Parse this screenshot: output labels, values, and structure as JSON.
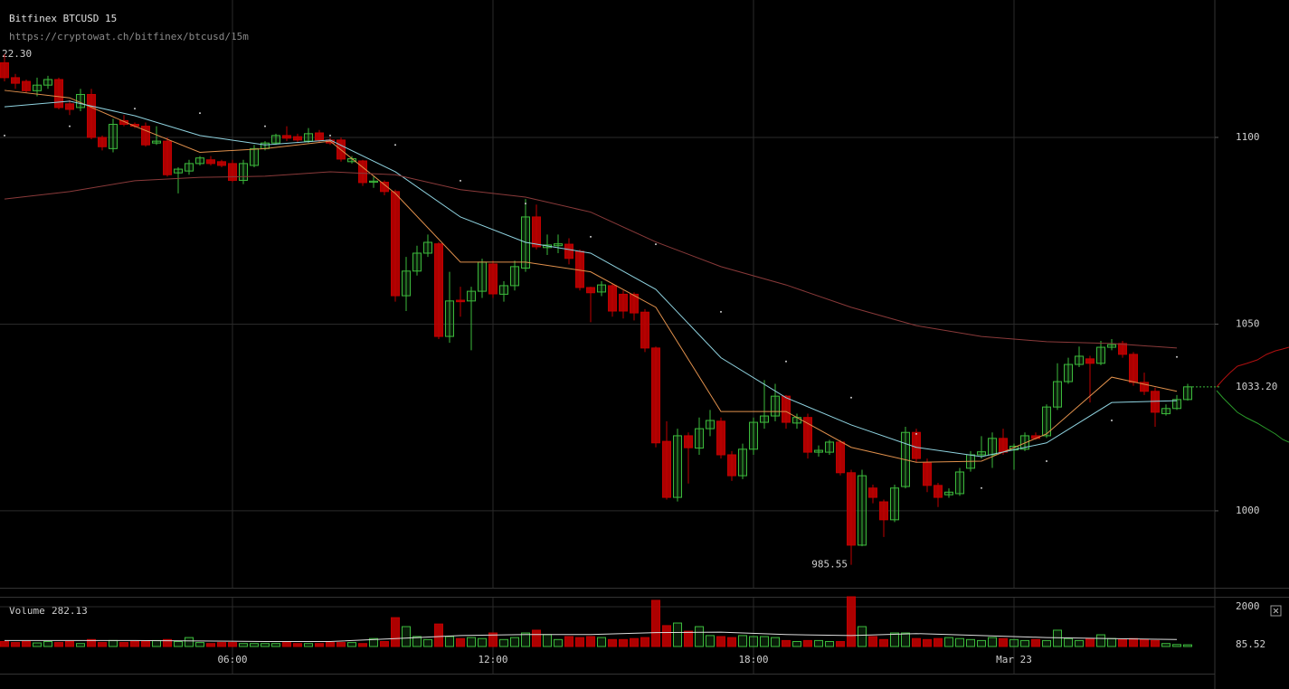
{
  "chart_data": {
    "type": "candlestick",
    "title": "Bitfinex BTCUSD 15",
    "subtitle": "https://cryptowat.ch/bitfinex/btcusd/15m",
    "high_label": "22.30",
    "last_price_label": "1033.20",
    "categories": [
      null,
      null,
      null,
      null,
      null,
      null,
      null,
      null,
      null,
      null,
      null,
      null,
      null,
      null,
      null,
      null,
      null,
      null,
      null,
      null,
      null,
      "06:00",
      null,
      null,
      null,
      null,
      null,
      null,
      null,
      null,
      null,
      null,
      null,
      null,
      null,
      null,
      null,
      null,
      null,
      null,
      null,
      null,
      null,
      null,
      null,
      "12:00",
      null,
      null,
      null,
      null,
      null,
      null,
      null,
      null,
      null,
      null,
      null,
      null,
      null,
      null,
      null,
      null,
      null,
      null,
      null,
      null,
      null,
      null,
      null,
      "18:00",
      null,
      null,
      null,
      null,
      null,
      null,
      null,
      null,
      null,
      null,
      null,
      null,
      null,
      null,
      null,
      null,
      null,
      null,
      null,
      null,
      null,
      null,
      null,
      "Mar 23",
      null,
      null,
      null,
      null,
      null,
      null,
      null,
      null,
      null,
      null,
      null,
      null,
      null,
      null,
      null,
      null
    ],
    "open": [
      1120,
      1116,
      1115,
      1112.5,
      1114,
      1115.5,
      1109,
      1108,
      1111.5,
      1100,
      1097,
      1104.5,
      1103.5,
      1103,
      1098.5,
      1099,
      1090.5,
      1091,
      1093,
      1094,
      1093.5,
      1093,
      1088.5,
      1092.5,
      1097,
      1098.5,
      1100.5,
      1100.2,
      1099,
      1101.2,
      1099.3,
      1099.3,
      1093.5,
      1093.7,
      1088,
      1088,
      1085.5,
      1057.6,
      1064.2,
      1069,
      1071.5,
      1046.7,
      1056.4,
      1056.2,
      1058.8,
      1066.1,
      1058,
      1060.3,
      1065,
      1078.7,
      1070.5,
      1071,
      1071.4,
      1069.5,
      1059.8,
      1058.6,
      1060.3,
      1058,
      1058,
      1053.2,
      1043.6,
      1018.6,
      1003.6,
      1020.1,
      1016.8,
      1022,
      1024,
      1015,
      1009.4,
      1016.5,
      1023.7,
      1025.4,
      1030.7,
      1023.5,
      1025,
      1015.7,
      1015.7,
      1018.4,
      1010.2,
      990.8,
      1006.1,
      1002.4,
      997.6,
      1006.5,
      1021,
      1012.8,
      1006.8,
      1004.3,
      1004.6,
      1011.4,
      1015,
      1015,
      1019.4,
      1016.3,
      1016.5,
      1020.1,
      1020.1,
      1027.8,
      1034.6,
      1039.2,
      1040.7,
      1039.5,
      1043.8,
      1044.8,
      1041.9,
      1034.4,
      1032,
      1026,
      1027.4,
      1029.8
    ],
    "high": [
      1122.3,
      1117,
      1115.5,
      1116,
      1116.5,
      1116,
      1110,
      1113,
      1113,
      1100.5,
      1105,
      1106,
      1104,
      1104,
      1103,
      1100,
      1092,
      1094,
      1095,
      1095,
      1094,
      1094,
      1094,
      1098,
      1099,
      1101,
      1103,
      1101,
      1102.5,
      1102,
      1100,
      1100,
      1095,
      1094,
      1089.5,
      1088.5,
      1086,
      1068,
      1071,
      1074,
      1072,
      1064,
      1060,
      1060,
      1067.5,
      1067,
      1061.5,
      1067,
      1083.5,
      1082,
      1074,
      1074,
      1073,
      1070,
      1060,
      1061.5,
      1061,
      1059,
      1058.5,
      1054,
      1044,
      1024,
      1022,
      1021,
      1025,
      1027,
      1025,
      1016,
      1018,
      1025,
      1035,
      1034,
      1031,
      1026,
      1026,
      1017.5,
      1019,
      1019,
      1011,
      1011,
      1007,
      1003,
      1007,
      1022.5,
      1022,
      1014,
      1007.5,
      1006,
      1011.5,
      1016,
      1020,
      1021,
      1022,
      1018,
      1021,
      1021,
      1028.5,
      1039.5,
      1041,
      1044,
      1041.5,
      1045.5,
      1046,
      1045.5,
      1042.5,
      1037,
      1033,
      1028.5,
      1031,
      1034
    ],
    "low": [
      1115,
      1113,
      1112,
      1111,
      1113,
      1107.5,
      1106,
      1107,
      1099.5,
      1096.5,
      1096,
      1103,
      1102.5,
      1097.5,
      1098,
      1089.5,
      1085,
      1090,
      1092.5,
      1092.5,
      1092,
      1088,
      1087.5,
      1092,
      1096.5,
      1098,
      1099,
      1098.5,
      1098.5,
      1098.5,
      1098,
      1093.5,
      1093,
      1087,
      1086.5,
      1084.5,
      1056,
      1053.5,
      1063,
      1068,
      1046,
      1045,
      1052,
      1043,
      1057,
      1057,
      1056,
      1059,
      1064,
      1070,
      1068.5,
      1069,
      1066,
      1059,
      1050.5,
      1057.5,
      1052,
      1051.5,
      1051,
      1042.5,
      1017,
      1003,
      1002.5,
      1007.3,
      1015,
      1020,
      1014,
      1008,
      1008.5,
      1015,
      1022,
      1024,
      1022,
      1022,
      1014,
      1014.5,
      1015,
      1009.5,
      985.55,
      990.5,
      1002,
      993,
      997,
      1006,
      1013,
      1005,
      1001,
      1003.5,
      1004,
      1010.5,
      1014,
      1011.5,
      1015,
      1011,
      1016,
      1019,
      1019.5,
      1027,
      1034,
      1038.5,
      1029,
      1039,
      1043,
      1041,
      1033.5,
      1031,
      1022.5,
      1025.5,
      1027,
      1029.5
    ],
    "close": [
      1116,
      1114.5,
      1112.5,
      1114,
      1115.5,
      1108,
      1107.5,
      1111.5,
      1100,
      1097.5,
      1103.5,
      1103.5,
      1103,
      1098,
      1099,
      1090,
      1091.5,
      1093,
      1094.5,
      1093,
      1092.5,
      1088.5,
      1093,
      1097,
      1098.5,
      1100.5,
      1099.8,
      1099.3,
      1101,
      1099.3,
      1098.5,
      1094.2,
      1094.3,
      1087.9,
      1088.3,
      1085.5,
      1057.6,
      1064.2,
      1069,
      1071.9,
      1046.7,
      1056.2,
      1056,
      1058.8,
      1066.6,
      1058.1,
      1060.3,
      1065.4,
      1078.7,
      1070.7,
      1071.2,
      1071.5,
      1067.6,
      1059.8,
      1058.4,
      1060.5,
      1053.5,
      1053.5,
      1053,
      1043.6,
      1018.2,
      1003.6,
      1020.1,
      1016.9,
      1022,
      1024.2,
      1015,
      1009.4,
      1016.5,
      1023.7,
      1025.4,
      1030.7,
      1023.7,
      1025,
      1015.7,
      1016.2,
      1018.4,
      1010.2,
      990.8,
      1009.4,
      1003.6,
      997.6,
      1006.1,
      1021,
      1014,
      1006.8,
      1003.6,
      1005,
      1010.4,
      1015,
      1015.8,
      1019.4,
      1015.7,
      1017.3,
      1020.1,
      1019.4,
      1027.8,
      1034.6,
      1039.2,
      1041.4,
      1039.5,
      1043.8,
      1044.5,
      1041.9,
      1034.4,
      1032,
      1026.4,
      1027.4,
      1029.8,
      1033.2
    ],
    "up_color": "#3cba3c",
    "down_color": "#c00000",
    "ylim": [
      979.4,
      1136.8
    ],
    "yticks": [
      1000,
      1050,
      1100
    ],
    "grid": true,
    "indicator_x": [
      0,
      6,
      12,
      18,
      24,
      30,
      36,
      42,
      48,
      54,
      60,
      66,
      72,
      78,
      84,
      90,
      96,
      102,
      108
    ],
    "indicators": [
      {
        "color": "#e0904c",
        "values": [
          1112.6,
          1110.6,
          1103,
          1096,
          1097,
          1099,
          1085,
          1066.6,
          1066.6,
          1064,
          1054.5,
          1026.6,
          1026.6,
          1017,
          1013,
          1013.3,
          1020.6,
          1035.8,
          1032
        ]
      },
      {
        "color": "#8fd3e0",
        "values": [
          1108.2,
          1109.7,
          1105.8,
          1100.5,
          1098,
          1099.3,
          1090.8,
          1078.7,
          1071.9,
          1069,
          1059.3,
          1041,
          1030.3,
          1023,
          1017,
          1014.5,
          1018.2,
          1029,
          1029.5
        ]
      },
      {
        "color": "#8a3a3a",
        "values": [
          1083.5,
          1085.5,
          1088.4,
          1089.3,
          1089.6,
          1090.8,
          1090,
          1086,
          1084,
          1080,
          1072,
          1065.4,
          1060.5,
          1054.5,
          1049.6,
          1046.7,
          1045.3,
          1044.8,
          1043.6
        ]
      }
    ],
    "sar": {
      "color": "#cccccc",
      "values": [
        1100.5,
        1103,
        1107.7,
        1106.5,
        1103,
        1100.5,
        1098,
        1088.4,
        1082.3,
        1073.4,
        1071.4,
        1053.3,
        1040,
        1030.3,
        1020.6,
        1006.1,
        1013.3,
        1024.2,
        1041.2
      ]
    },
    "volume": {
      "label": "Volume",
      "current_label": "282.13",
      "values": [
        250,
        200,
        250,
        180,
        250,
        200,
        250,
        150,
        350,
        200,
        300,
        200,
        250,
        250,
        300,
        350,
        250,
        450,
        200,
        150,
        200,
        200,
        150,
        150,
        150,
        150,
        200,
        150,
        150,
        150,
        200,
        200,
        200,
        150,
        400,
        250,
        1450,
        1000,
        500,
        350,
        1130,
        500,
        400,
        450,
        400,
        680,
        350,
        450,
        680,
        820,
        600,
        350,
        500,
        450,
        500,
        450,
        350,
        350,
        400,
        450,
        2320,
        1050,
        1180,
        770,
        1000,
        550,
        500,
        450,
        550,
        500,
        500,
        450,
        300,
        250,
        300,
        300,
        250,
        250,
        2500,
        1000,
        500,
        350,
        680,
        680,
        400,
        350,
        400,
        450,
        400,
        350,
        300,
        450,
        400,
        350,
        300,
        350,
        300,
        820,
        400,
        300,
        400,
        590,
        400,
        350,
        400,
        350,
        300,
        150,
        100,
        85.52
      ],
      "ylim": [
        0,
        2500
      ],
      "yticks": [
        2000
      ],
      "ma_color": "#dddddd",
      "ma_values": [
        300,
        300,
        300,
        280,
        250,
        250,
        400,
        550,
        600,
        600,
        700,
        720,
        600,
        550,
        650,
        550,
        450,
        400,
        350
      ]
    }
  }
}
